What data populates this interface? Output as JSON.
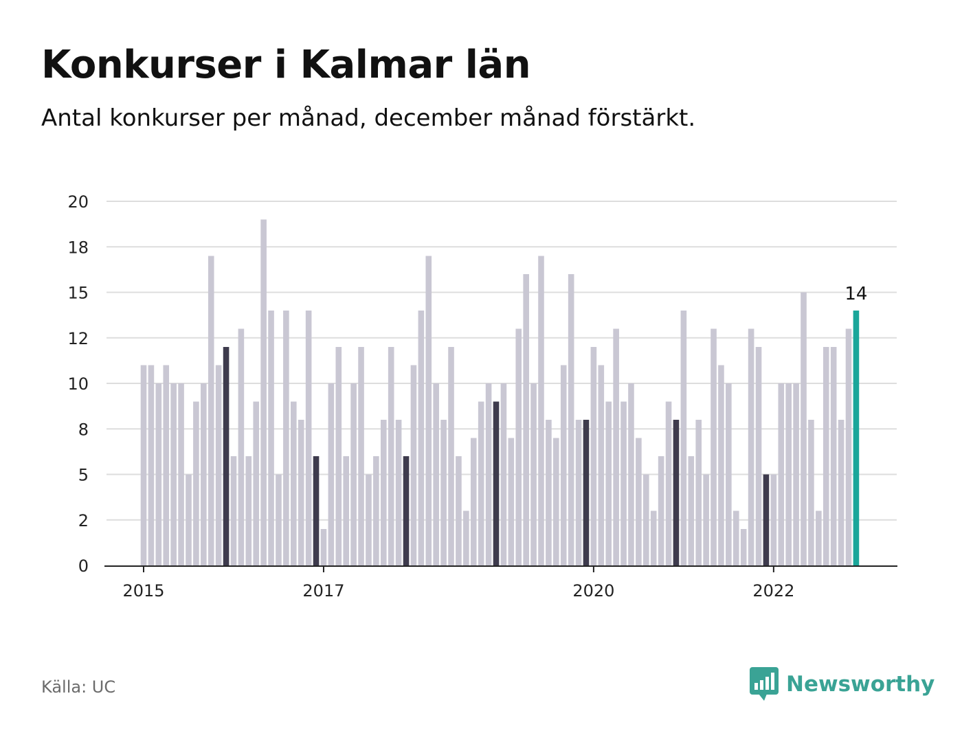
{
  "header": {
    "title": "Konkurser i Kalmar län",
    "subtitle": "Antal konkurser per månad, december månad förstärkt."
  },
  "footer": {
    "source": "Källa: UC",
    "brand": "Newsworthy"
  },
  "colors": {
    "bar": "#c9c7d3",
    "december": "#3e3b4d",
    "latest": "#1aa69a",
    "grid": "#dddddd",
    "axis": "#222222",
    "brand": "#3aa395"
  },
  "chart_data": {
    "type": "bar",
    "title": "Konkurser i Kalmar län",
    "subtitle": "Antal konkurser per månad, december månad förstärkt.",
    "xlabel": "",
    "ylabel": "",
    "ylim": [
      0,
      20
    ],
    "grid": true,
    "legend": "none",
    "yticks": [
      0,
      2.5,
      5,
      7.5,
      10,
      12.5,
      15,
      17.5,
      20
    ],
    "ytick_labels": [
      "0",
      "2",
      "5",
      "8",
      "10",
      "12",
      "15",
      "18",
      "20"
    ],
    "xtick_labels": [
      {
        "label": "2015",
        "index": 0
      },
      {
        "label": "2017",
        "index": 24
      },
      {
        "label": "2020",
        "index": 60
      },
      {
        "label": "2022",
        "index": 84
      }
    ],
    "start": "2015-01",
    "december_highlight": true,
    "values": [
      11,
      11,
      10,
      11,
      10,
      10,
      5,
      9,
      10,
      17,
      11,
      12,
      6,
      13,
      6,
      9,
      19,
      14,
      5,
      14,
      9,
      8,
      14,
      6,
      2,
      10,
      12,
      6,
      10,
      12,
      5,
      6,
      8,
      12,
      8,
      6,
      11,
      14,
      17,
      10,
      8,
      12,
      6,
      3,
      7,
      9,
      10,
      9,
      10,
      7,
      13,
      16,
      10,
      17,
      8,
      7,
      11,
      16,
      8,
      8,
      12,
      11,
      9,
      13,
      9,
      10,
      7,
      5,
      3,
      6,
      9,
      8,
      14,
      6,
      8,
      5,
      13,
      11,
      10,
      3,
      2,
      13,
      12,
      5,
      5,
      10,
      10,
      10,
      15,
      8,
      3,
      12,
      12,
      8,
      13,
      14
    ],
    "highlight": {
      "index": 95,
      "label": "14"
    }
  }
}
